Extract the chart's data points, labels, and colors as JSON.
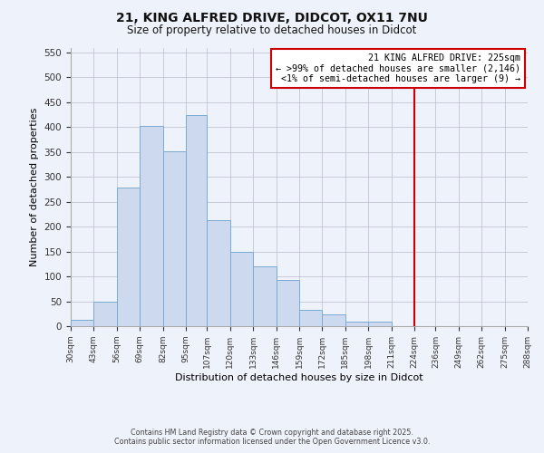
{
  "title_line1": "21, KING ALFRED DRIVE, DIDCOT, OX11 7NU",
  "title_line2": "Size of property relative to detached houses in Didcot",
  "xlabel": "Distribution of detached houses by size in Didcot",
  "ylabel": "Number of detached properties",
  "bin_labels": [
    "30sqm",
    "43sqm",
    "56sqm",
    "69sqm",
    "82sqm",
    "95sqm",
    "107sqm",
    "120sqm",
    "133sqm",
    "146sqm",
    "159sqm",
    "172sqm",
    "185sqm",
    "198sqm",
    "211sqm",
    "224sqm",
    "236sqm",
    "249sqm",
    "262sqm",
    "275sqm",
    "288sqm"
  ],
  "bin_edges": [
    30,
    43,
    56,
    69,
    82,
    95,
    107,
    120,
    133,
    146,
    159,
    172,
    185,
    198,
    211,
    224,
    236,
    249,
    262,
    275,
    288
  ],
  "bar_heights": [
    12,
    50,
    278,
    403,
    352,
    425,
    213,
    150,
    120,
    93,
    32,
    23,
    10,
    10,
    0,
    0,
    0,
    0,
    0,
    0
  ],
  "bar_color": "#ccd9ee",
  "bar_edge_color": "#7aaad4",
  "vline_x": 224,
  "vline_color": "#cc0000",
  "annotation_title": "21 KING ALFRED DRIVE: 225sqm",
  "annotation_line1": "← >99% of detached houses are smaller (2,146)",
  "annotation_line2": "<1% of semi-detached houses are larger (9) →",
  "annotation_box_color": "#cc0000",
  "ylim": [
    0,
    560
  ],
  "yticks": [
    0,
    50,
    100,
    150,
    200,
    250,
    300,
    350,
    400,
    450,
    500,
    550
  ],
  "footer_line1": "Contains HM Land Registry data © Crown copyright and database right 2025.",
  "footer_line2": "Contains public sector information licensed under the Open Government Licence v3.0.",
  "bg_color": "#eef2fa"
}
